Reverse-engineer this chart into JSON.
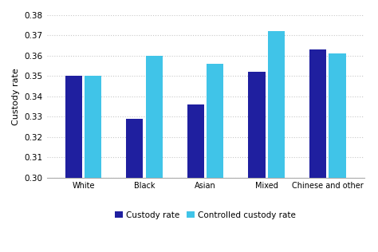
{
  "categories": [
    "White",
    "Black",
    "Asian",
    "Mixed",
    "Chinese and other"
  ],
  "custody_rate": [
    0.35,
    0.329,
    0.336,
    0.352,
    0.363
  ],
  "controlled_custody_rate": [
    0.35,
    0.36,
    0.356,
    0.372,
    0.361
  ],
  "bar_color_custody": "#1F1F9F",
  "bar_color_controlled": "#40C4E8",
  "ylabel": "Custody rate",
  "ylim_min": 0.3,
  "ylim_max": 0.38,
  "yticks": [
    0.3,
    0.31,
    0.32,
    0.33,
    0.34,
    0.35,
    0.36,
    0.37,
    0.38
  ],
  "legend_labels": [
    "Custody rate",
    "Controlled custody rate"
  ],
  "bar_width": 0.28,
  "bar_gap": 0.04,
  "grid_color": "#c8c8c8",
  "background_color": "#ffffff"
}
